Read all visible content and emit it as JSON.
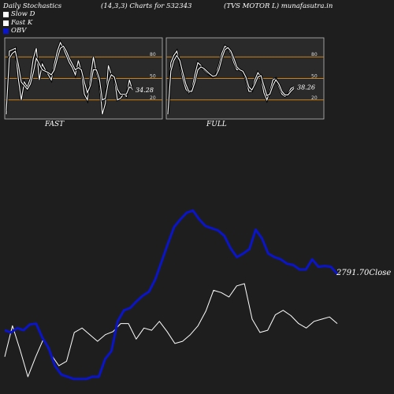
{
  "header": {
    "title": "Daily Stochastics",
    "params": "(14,3,3) Charts for 532343",
    "company_site": "(TVS MOTOR L) munafasutra.in"
  },
  "legend": [
    {
      "label": "Slow  D",
      "color": "#ffffff"
    },
    {
      "label": "Fast K",
      "color": "#ffffff"
    },
    {
      "label": "OBV",
      "color": "#0a14c8"
    }
  ],
  "colors": {
    "background": "#1e1e1e",
    "panel": "#2a2a2a",
    "level_line": "#c8821e",
    "obv": "#0a14c8",
    "price": "#ffffff"
  },
  "chart_data": [
    {
      "type": "line",
      "panel": "FAST",
      "ylim": [
        0,
        100
      ],
      "levels": [
        20,
        50,
        80
      ],
      "tick_labels": [
        "80",
        "50",
        "20"
      ],
      "last_value_label": "34.28",
      "series": [
        {
          "name": "Fast K",
          "values": [
            0,
            88,
            90,
            92,
            50,
            20,
            45,
            38,
            50,
            78,
            92,
            48,
            70,
            62,
            55,
            48,
            70,
            88,
            100,
            92,
            82,
            72,
            65,
            55,
            75,
            60,
            28,
            20,
            50,
            80,
            58,
            45,
            0,
            15,
            68,
            55,
            50,
            20,
            22,
            28,
            25,
            48,
            34
          ]
        },
        {
          "name": "Slow D",
          "values": [
            5,
            78,
            85,
            88,
            70,
            45,
            40,
            35,
            42,
            58,
            78,
            70,
            62,
            60,
            58,
            55,
            62,
            78,
            92,
            95,
            88,
            78,
            70,
            62,
            65,
            62,
            45,
            30,
            40,
            62,
            62,
            50,
            20,
            22,
            45,
            55,
            52,
            35,
            28,
            28,
            28,
            38,
            36
          ]
        }
      ]
    },
    {
      "type": "line",
      "panel": "FULL",
      "ylim": [
        0,
        100
      ],
      "levels": [
        20,
        50,
        80
      ],
      "tick_labels": [
        "80",
        "50",
        "20"
      ],
      "last_value_label": "38.26",
      "series": [
        {
          "name": "Fast K",
          "values": [
            0,
            72,
            82,
            88,
            72,
            50,
            35,
            30,
            35,
            55,
            72,
            68,
            62,
            58,
            55,
            52,
            55,
            68,
            85,
            95,
            92,
            85,
            72,
            62,
            62,
            60,
            48,
            32,
            32,
            48,
            58,
            52,
            30,
            20,
            32,
            48,
            50,
            38,
            28,
            25,
            28,
            36,
            38
          ]
        },
        {
          "name": "Slow D",
          "values": [
            0,
            60,
            75,
            82,
            75,
            58,
            42,
            32,
            32,
            45,
            62,
            66,
            64,
            60,
            56,
            53,
            54,
            62,
            78,
            90,
            93,
            88,
            78,
            66,
            62,
            60,
            52,
            38,
            34,
            42,
            52,
            54,
            40,
            26,
            28,
            40,
            48,
            42,
            32,
            27,
            27,
            32,
            36
          ]
        }
      ]
    },
    {
      "type": "line",
      "panel": "price-obv",
      "last_close_label": "2791.70Close",
      "series": [
        {
          "name": "Close",
          "values": [
            75,
            145,
            90,
            30,
            75,
            115,
            80,
            55,
            65,
            130,
            140,
            125,
            110,
            125,
            132,
            150,
            150,
            115,
            140,
            135,
            155,
            132,
            105,
            110,
            125,
            145,
            178,
            225,
            220,
            210,
            235,
            240,
            160,
            130,
            135,
            170,
            180,
            168,
            150,
            140,
            155,
            160,
            165,
            150
          ]
        },
        {
          "name": "OBV",
          "values": [
            135,
            130,
            140,
            135,
            148,
            150,
            118,
            95,
            55,
            35,
            30,
            25,
            25,
            25,
            30,
            30,
            70,
            88,
            155,
            180,
            185,
            200,
            213,
            222,
            250,
            290,
            330,
            368,
            385,
            400,
            405,
            385,
            370,
            365,
            360,
            348,
            320,
            300,
            308,
            318,
            362,
            342,
            308,
            300,
            295,
            285,
            282,
            272,
            272,
            295,
            278,
            280,
            278,
            262
          ]
        }
      ]
    }
  ],
  "panels": [
    {
      "label": "FAST"
    },
    {
      "label": "FULL"
    }
  ]
}
